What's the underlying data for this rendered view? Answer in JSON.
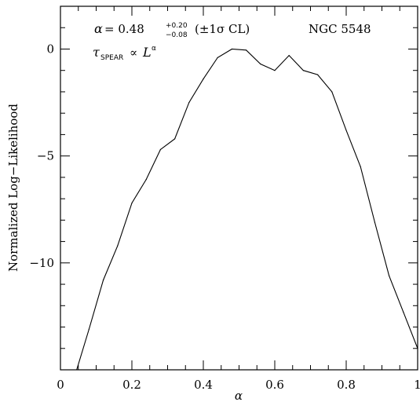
{
  "chart_data": {
    "type": "line",
    "title": "",
    "xlabel": "α",
    "ylabel": "Normalized Log−Likelihood",
    "xlim": [
      0,
      1
    ],
    "ylim": [
      -15,
      2
    ],
    "grid": false,
    "x_ticks": [
      {
        "value": 0,
        "label": "0"
      },
      {
        "value": 0.2,
        "label": "0.2"
      },
      {
        "value": 0.4,
        "label": "0.4"
      },
      {
        "value": 0.6,
        "label": "0.6"
      },
      {
        "value": 0.8,
        "label": "0.8"
      },
      {
        "value": 1,
        "label": "1"
      }
    ],
    "y_ticks": [
      {
        "value": 0,
        "label": "0"
      },
      {
        "value": -5,
        "label": "−5"
      },
      {
        "value": -10,
        "label": "−10"
      }
    ],
    "series": [
      {
        "x": [
          0.04,
          0.08,
          0.12,
          0.16,
          0.2,
          0.24,
          0.28,
          0.32,
          0.36,
          0.4,
          0.44,
          0.48,
          0.52,
          0.56,
          0.6,
          0.64,
          0.68,
          0.72,
          0.76,
          0.8,
          0.84,
          0.88,
          0.92,
          0.96,
          1.0
        ],
        "y": [
          -15.3,
          -13.1,
          -10.8,
          -9.2,
          -7.2,
          -6.1,
          -4.7,
          -4.2,
          -2.5,
          -1.4,
          -0.4,
          0.0,
          -0.05,
          -0.7,
          -1.0,
          -0.3,
          -1.0,
          -1.2,
          -2.0,
          -3.8,
          -5.5,
          -8.1,
          -10.6,
          -12.3,
          -14.0
        ]
      }
    ],
    "annotations": {
      "fit_symbol": "α",
      "fit_eq": "= 0.48",
      "fit_sup": "+0.20",
      "fit_sub": "−0.08",
      "fit_cl": "(±1σ  CL)",
      "relation_tau": "τ",
      "relation_sub": "SPEAR",
      "relation_prop": "∝",
      "relation_L": "L",
      "relation_exp": "α",
      "object_name": "NGC 5548"
    }
  }
}
